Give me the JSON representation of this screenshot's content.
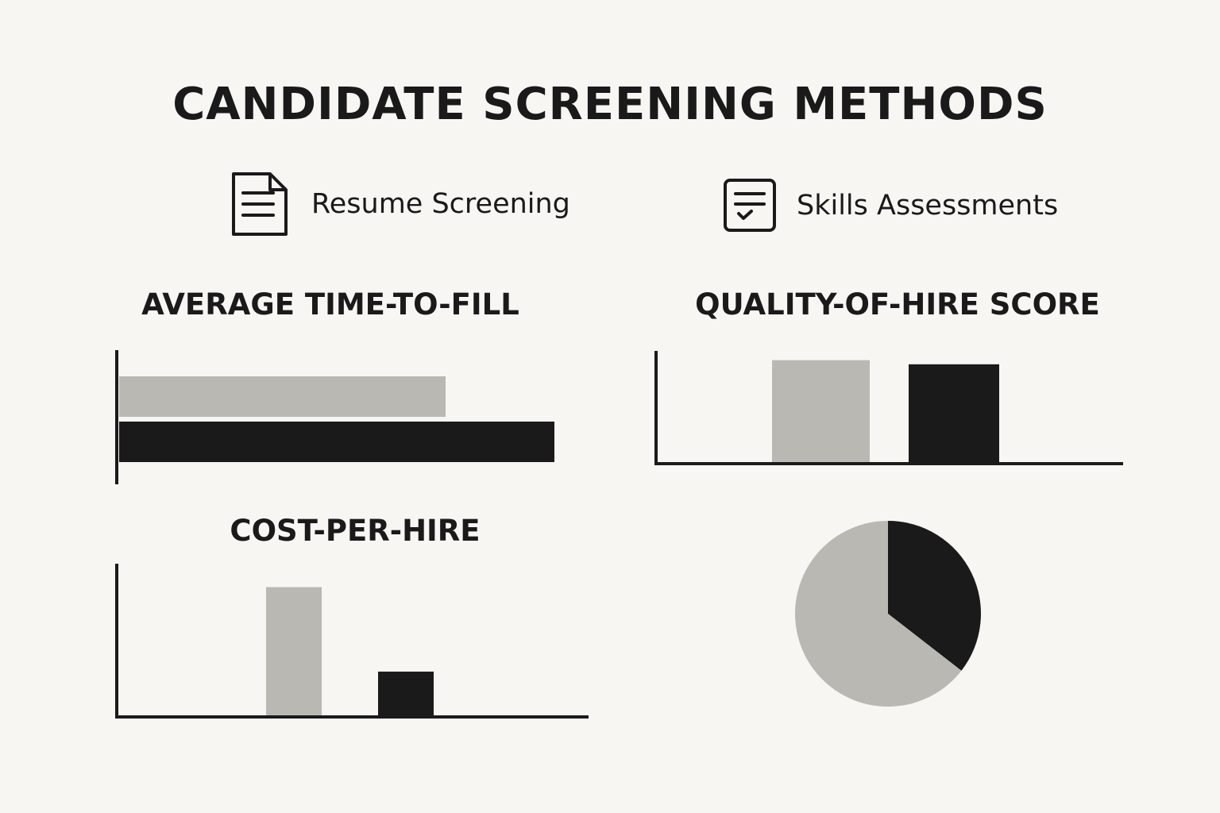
{
  "page": {
    "title": "CANDIDATE SCREENING METHODS"
  },
  "legend": {
    "items": [
      {
        "label": "Resume Screening",
        "icon": "document-icon",
        "color": "#b9b8b2"
      },
      {
        "label": "Skills Assessments",
        "icon": "checklist-icon",
        "color": "#1a1a1a"
      }
    ]
  },
  "colors": {
    "background": "#f7f6f3",
    "resume": "#b9b8b2",
    "skills": "#1a1a1a",
    "axis": "#1a1a1a"
  },
  "chart_data": [
    {
      "type": "bar",
      "orientation": "horizontal",
      "title": "AVERAGE TIME-TO-FILL",
      "series": [
        {
          "name": "Resume Screening",
          "values": [
            0.75
          ]
        },
        {
          "name": "Skills Assessments",
          "values": [
            1.0
          ]
        }
      ],
      "xlim": [
        0,
        1
      ],
      "axis_labels_shown": false
    },
    {
      "type": "bar",
      "orientation": "vertical",
      "title": "QUALITY-OF-HIRE SCORE",
      "series": [
        {
          "name": "Resume Screening",
          "values": [
            0.98
          ]
        },
        {
          "name": "Skills Assessments",
          "values": [
            0.94
          ]
        }
      ],
      "ylim": [
        0,
        1
      ],
      "axis_labels_shown": false
    },
    {
      "type": "bar",
      "orientation": "vertical",
      "title": "COST-PER-HIRE",
      "series": [
        {
          "name": "Resume Screening",
          "values": [
            0.85
          ]
        },
        {
          "name": "Skills Assessments",
          "values": [
            0.29
          ]
        }
      ],
      "ylim": [
        0,
        1
      ],
      "axis_labels_shown": false
    },
    {
      "type": "pie",
      "title": "",
      "slices": [
        {
          "name": "Skills Assessments",
          "value": 35.5
        },
        {
          "name": "Resume Screening",
          "value": 64.5
        }
      ],
      "start_angle_deg": 0,
      "direction": "clockwise from top"
    }
  ]
}
